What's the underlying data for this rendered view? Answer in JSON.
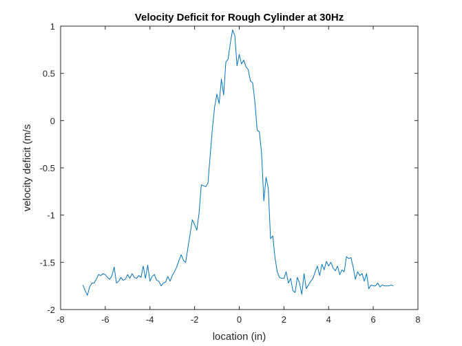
{
  "chart_data": {
    "type": "line",
    "title": "Velocity Deficit for Rough Cylinder at 30Hz",
    "xlabel": "location (in)",
    "ylabel": "velocity deficit (m/s",
    "xlim": [
      -8,
      8
    ],
    "ylim": [
      -2,
      1
    ],
    "xticks": [
      -8,
      -6,
      -4,
      -2,
      0,
      2,
      4,
      6,
      8
    ],
    "yticks": [
      -2,
      -1.5,
      -1,
      -0.5,
      0,
      0.5,
      1
    ],
    "xtick_labels": [
      "-8",
      "-6",
      "-4",
      "-2",
      "0",
      "2",
      "4",
      "6",
      "8"
    ],
    "ytick_labels": [
      "-2",
      "-1.5",
      "-1",
      "-0.5",
      "0",
      "0.5",
      "1"
    ],
    "grid": false,
    "legend": "none",
    "series": [
      {
        "color": "#0072BD",
        "x": [
          -7.0,
          -6.9,
          -6.8,
          -6.7,
          -6.6,
          -6.5,
          -6.4,
          -6.3,
          -6.2,
          -6.1,
          -6.0,
          -5.9,
          -5.8,
          -5.7,
          -5.6,
          -5.5,
          -5.4,
          -5.3,
          -5.2,
          -5.1,
          -5.0,
          -4.9,
          -4.8,
          -4.7,
          -4.6,
          -4.5,
          -4.4,
          -4.3,
          -4.2,
          -4.1,
          -4.0,
          -3.9,
          -3.8,
          -3.7,
          -3.6,
          -3.5,
          -3.4,
          -3.3,
          -3.2,
          -3.1,
          -3.0,
          -2.9,
          -2.8,
          -2.7,
          -2.6,
          -2.5,
          -2.4,
          -2.3,
          -2.2,
          -2.1,
          -2.0,
          -1.9,
          -1.8,
          -1.7,
          -1.6,
          -1.5,
          -1.4,
          -1.3,
          -1.2,
          -1.1,
          -1.0,
          -0.9,
          -0.8,
          -0.7,
          -0.6,
          -0.5,
          -0.4,
          -0.3,
          -0.2,
          -0.1,
          0.0,
          0.1,
          0.2,
          0.3,
          0.4,
          0.5,
          0.6,
          0.7,
          0.8,
          0.9,
          1.0,
          1.1,
          1.2,
          1.3,
          1.4,
          1.5,
          1.6,
          1.7,
          1.8,
          1.9,
          2.0,
          2.1,
          2.2,
          2.3,
          2.4,
          2.5,
          2.6,
          2.7,
          2.8,
          2.9,
          3.0,
          3.1,
          3.2,
          3.3,
          3.4,
          3.5,
          3.6,
          3.7,
          3.8,
          3.9,
          4.0,
          4.1,
          4.2,
          4.3,
          4.4,
          4.5,
          4.6,
          4.7,
          4.8,
          4.9,
          5.0,
          5.1,
          5.2,
          5.3,
          5.4,
          5.5,
          5.6,
          5.7,
          5.8,
          5.9,
          6.0,
          6.1,
          6.2,
          6.3,
          6.4,
          6.5,
          6.6,
          6.7,
          6.8,
          6.9
        ],
        "y": [
          -1.74,
          -1.8,
          -1.85,
          -1.76,
          -1.72,
          -1.72,
          -1.68,
          -1.63,
          -1.64,
          -1.62,
          -1.63,
          -1.66,
          -1.68,
          -1.64,
          -1.55,
          -1.72,
          -1.7,
          -1.66,
          -1.69,
          -1.68,
          -1.63,
          -1.67,
          -1.62,
          -1.66,
          -1.67,
          -1.64,
          -1.66,
          -1.54,
          -1.67,
          -1.53,
          -1.7,
          -1.65,
          -1.63,
          -1.69,
          -1.7,
          -1.75,
          -1.72,
          -1.71,
          -1.65,
          -1.7,
          -1.64,
          -1.6,
          -1.55,
          -1.48,
          -1.42,
          -1.48,
          -1.5,
          -1.35,
          -1.2,
          -1.05,
          -1.1,
          -1.16,
          -0.98,
          -0.68,
          -0.69,
          -0.7,
          -0.66,
          -0.36,
          -0.08,
          0.15,
          0.28,
          0.18,
          0.44,
          0.27,
          0.62,
          0.65,
          0.82,
          0.96,
          0.9,
          0.58,
          0.7,
          0.6,
          0.64,
          0.57,
          0.54,
          0.42,
          0.4,
          0.2,
          -0.1,
          -0.12,
          -0.35,
          -0.85,
          -0.6,
          -0.72,
          -1.25,
          -1.22,
          -1.45,
          -1.6,
          -1.66,
          -1.67,
          -1.67,
          -1.6,
          -1.72,
          -1.67,
          -1.8,
          -1.82,
          -1.66,
          -1.72,
          -1.84,
          -1.62,
          -1.78,
          -1.74,
          -1.7,
          -1.67,
          -1.6,
          -1.54,
          -1.64,
          -1.52,
          -1.58,
          -1.49,
          -1.54,
          -1.5,
          -1.56,
          -1.59,
          -1.54,
          -1.63,
          -1.58,
          -1.6,
          -1.44,
          -1.46,
          -1.45,
          -1.55,
          -1.68,
          -1.6,
          -1.64,
          -1.62,
          -1.7,
          -1.62,
          -1.78,
          -1.74,
          -1.75,
          -1.75,
          -1.72,
          -1.76,
          -1.74,
          -1.75,
          -1.75,
          -1.75,
          -1.74,
          -1.75
        ]
      }
    ]
  }
}
